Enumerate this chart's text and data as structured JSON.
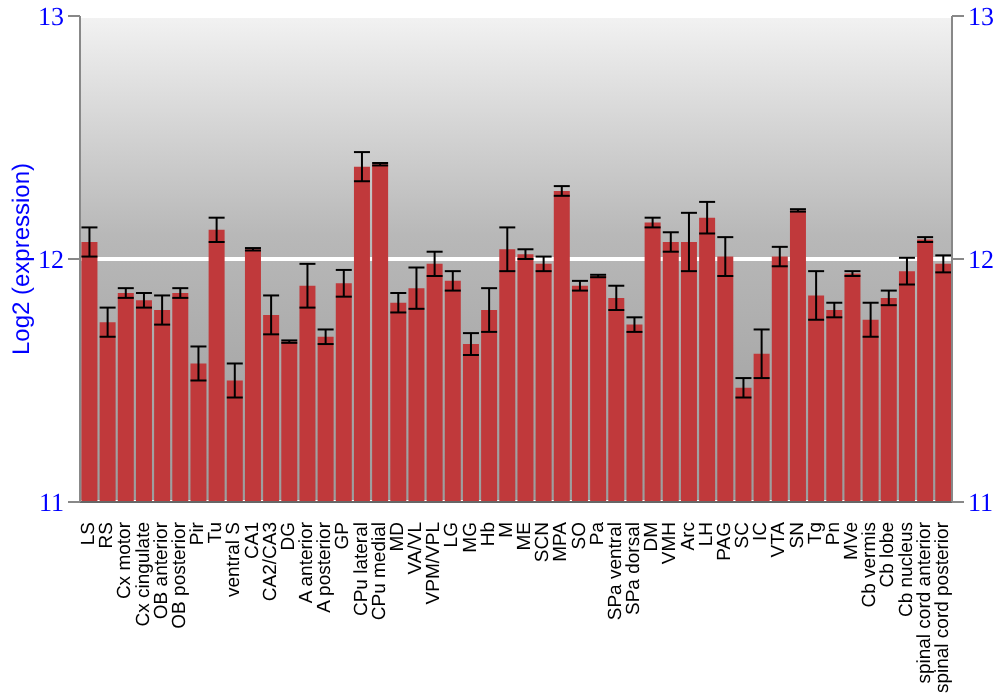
{
  "chart_data": {
    "type": "bar",
    "ylabel": "Log2 (expression)",
    "categories": [
      "LS",
      "RS",
      "Cx motor",
      "Cx cingulate",
      "OB anterior",
      "OB posterior",
      "Pir",
      "Tu",
      "ventral S",
      "CA1",
      "CA2/CA3",
      "DG",
      "A anterior",
      "A posterior",
      "GP",
      "CPu lateral",
      "CPu medial",
      "MD",
      "VA/VL",
      "VPM/VPL",
      "LG",
      "MG",
      "Hb",
      "M",
      "ME",
      "SCN",
      "MPA",
      "SO",
      "Pa",
      "SPa ventral",
      "SPa dorsal",
      "DM",
      "VMH",
      "Arc",
      "LH",
      "PAG",
      "SC",
      "IC",
      "VTA",
      "SN",
      "Tg",
      "Pn",
      "MVe",
      "Cb vermis",
      "Cb lobe",
      "Cb nucleus",
      "spinal cord anterior",
      "spinal cord posterior"
    ],
    "values": [
      12.07,
      11.74,
      11.86,
      11.83,
      11.79,
      11.86,
      11.57,
      12.12,
      11.5,
      12.04,
      11.77,
      11.66,
      11.89,
      11.68,
      11.9,
      12.38,
      12.39,
      11.82,
      11.88,
      11.98,
      11.91,
      11.65,
      11.79,
      12.04,
      12.02,
      11.98,
      12.28,
      11.89,
      11.93,
      11.84,
      11.73,
      12.15,
      12.07,
      12.07,
      12.17,
      12.01,
      11.47,
      11.61,
      12.01,
      12.2,
      11.85,
      11.79,
      11.94,
      11.75,
      11.84,
      11.95,
      12.08,
      11.98
    ],
    "errors": [
      0.06,
      0.06,
      0.02,
      0.03,
      0.06,
      0.02,
      0.07,
      0.05,
      0.07,
      0.005,
      0.08,
      0.005,
      0.09,
      0.03,
      0.055,
      0.06,
      0.005,
      0.04,
      0.085,
      0.05,
      0.04,
      0.045,
      0.09,
      0.09,
      0.02,
      0.03,
      0.02,
      0.02,
      0.005,
      0.05,
      0.03,
      0.02,
      0.04,
      0.12,
      0.065,
      0.08,
      0.04,
      0.1,
      0.04,
      0.005,
      0.1,
      0.03,
      0.01,
      0.07,
      0.03,
      0.055,
      0.01,
      0.035
    ],
    "color": "#c0393b",
    "ylim": [
      11,
      13
    ],
    "yticks": [
      11,
      12,
      13
    ],
    "y2lim": [
      11,
      13
    ],
    "y2ticks": [
      11,
      12,
      13
    ],
    "grid": "y"
  }
}
